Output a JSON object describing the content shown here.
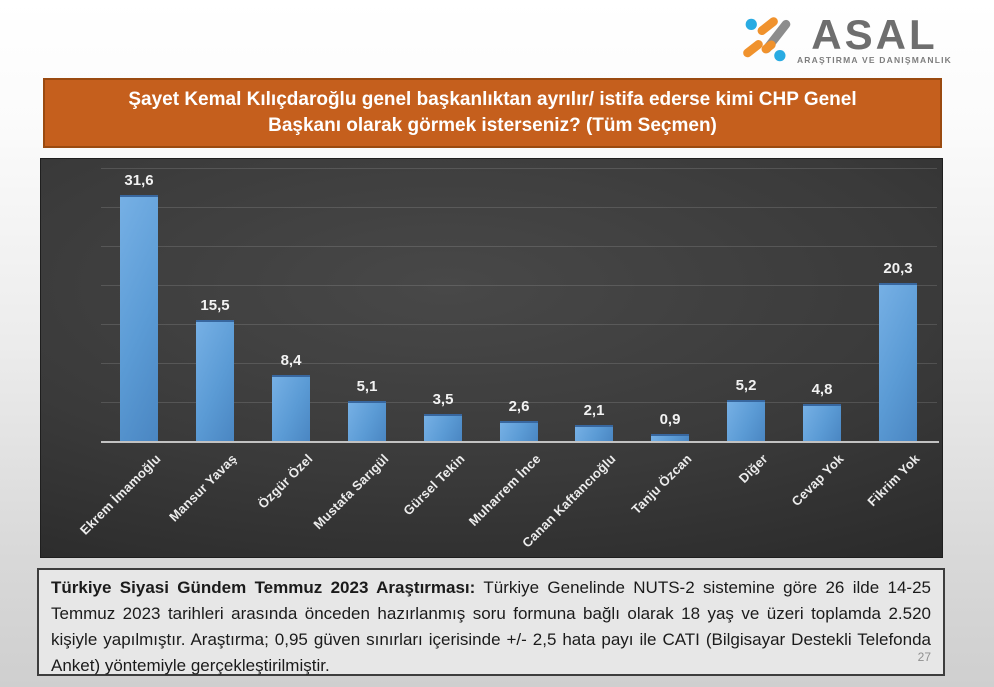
{
  "logo": {
    "brand": "ASAL",
    "tagline": "ARAŞTIRMA VE DANIŞMANLIK",
    "colors": {
      "orange": "#F0922D",
      "blue": "#29ABE2",
      "gray": "#8C8C8C",
      "text": "#6E6E6E"
    }
  },
  "title_lines": [
    "Şayet Kemal Kılıçdaroğlu genel başkanlıktan ayrılır/ istifa ederse kimi CHP Genel",
    "Başkanı olarak görmek isterseniz? (Tüm Seçmen)"
  ],
  "chart_data": {
    "type": "bar",
    "title": "Şayet Kemal Kılıçdaroğlu genel başkanlıktan ayrılır/ istifa ederse kimi CHP Genel Başkanı olarak görmek isterseniz? (Tüm Seçmen)",
    "categories": [
      "Ekrem İmamoğlu",
      "Mansur Yavaş",
      "Özgür Özel",
      "Mustafa Sarıgül",
      "Gürsel Tekin",
      "Muharrem İnce",
      "Canan Kaftancıoğlu",
      "Tanju Özcan",
      "Diğer",
      "Cevap Yok",
      "Fikrim Yok"
    ],
    "values": [
      31.6,
      15.5,
      8.4,
      5.1,
      3.5,
      2.6,
      2.1,
      0.9,
      5.2,
      4.8,
      20.3
    ],
    "value_labels": [
      "31,6",
      "15,5",
      "8,4",
      "5,1",
      "3,5",
      "2,6",
      "2,1",
      "0,9",
      "5,2",
      "4,8",
      "20,3"
    ],
    "xlabel": "",
    "ylabel": "",
    "ylim": [
      0,
      35
    ],
    "gridline_step": 5,
    "grid": true,
    "legend": false,
    "bar_color": "#5B9BD5",
    "plot_background_color": "#3a3a3a",
    "label_color": "#ececec"
  },
  "footer": {
    "bold_lead": "Türkiye Siyasi Gündem Temmuz 2023 Araştırması:",
    "body": "Türkiye Genelinde NUTS-2 sistemine göre 26 ilde 14-25 Temmuz 2023 tarihleri arasında önceden hazırlanmış soru formuna bağlı olarak 18 yaş ve üzeri toplamda 2.520 kişiyle yapılmıştır. Araştırma; 0,95 güven sınırları içerisinde +/- 2,5 hata payı ile CATI (Bilgisayar Destekli Telefonda Anket) yöntemiyle gerçekleştirilmiştir.",
    "page_number": "27"
  }
}
